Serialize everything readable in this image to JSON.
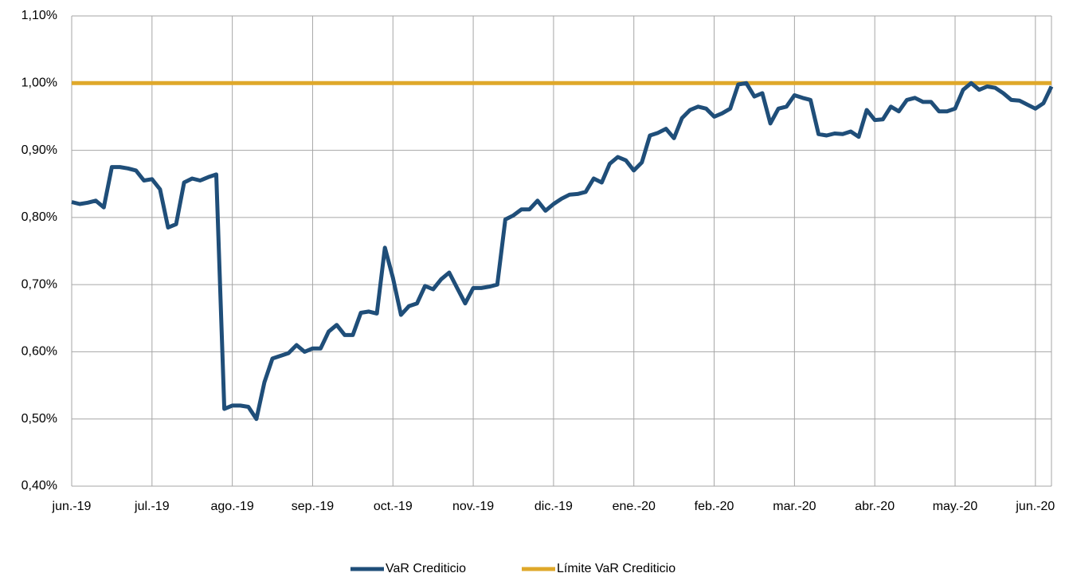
{
  "chart_data": {
    "type": "line",
    "categories": [
      "jun.-19",
      null,
      null,
      null,
      null,
      null,
      null,
      null,
      null,
      null,
      "jul.-19",
      null,
      null,
      null,
      null,
      null,
      null,
      null,
      null,
      null,
      "ago.-19",
      null,
      null,
      null,
      null,
      null,
      null,
      null,
      null,
      null,
      "sep.-19",
      null,
      null,
      null,
      null,
      null,
      null,
      null,
      null,
      null,
      "oct.-19",
      null,
      null,
      null,
      null,
      null,
      null,
      null,
      null,
      null,
      "nov.-19",
      null,
      null,
      null,
      null,
      null,
      null,
      null,
      null,
      null,
      "dic.-19",
      null,
      null,
      null,
      null,
      null,
      null,
      null,
      null,
      null,
      "ene.-20",
      null,
      null,
      null,
      null,
      null,
      null,
      null,
      null,
      null,
      "feb.-20",
      null,
      null,
      null,
      null,
      null,
      null,
      null,
      null,
      null,
      "mar.-20",
      null,
      null,
      null,
      null,
      null,
      null,
      null,
      null,
      null,
      "abr.-20",
      null,
      null,
      null,
      null,
      null,
      null,
      null,
      null,
      null,
      "may.-20",
      null,
      null,
      null,
      null,
      null,
      null,
      null,
      null,
      null,
      "jun.-20",
      null,
      null
    ],
    "series": [
      {
        "name": "VaR Crediticio",
        "color": "#1f4e79",
        "values": [
          0.823,
          0.82,
          0.822,
          0.825,
          0.815,
          0.875,
          0.875,
          0.873,
          0.87,
          0.855,
          0.857,
          0.842,
          0.785,
          0.79,
          0.852,
          0.858,
          0.855,
          0.86,
          0.864,
          0.515,
          0.52,
          0.52,
          0.518,
          0.5,
          0.555,
          0.59,
          0.594,
          0.598,
          0.61,
          0.6,
          0.605,
          0.605,
          0.63,
          0.64,
          0.625,
          0.625,
          0.658,
          0.66,
          0.657,
          0.755,
          0.71,
          0.655,
          0.668,
          0.672,
          0.698,
          0.693,
          0.708,
          0.718,
          0.695,
          0.672,
          0.695,
          0.695,
          0.697,
          0.7,
          0.797,
          0.803,
          0.812,
          0.812,
          0.825,
          0.81,
          0.82,
          0.828,
          0.834,
          0.835,
          0.838,
          0.858,
          0.852,
          0.88,
          0.89,
          0.885,
          0.87,
          0.882,
          0.922,
          0.926,
          0.932,
          0.918,
          0.948,
          0.96,
          0.965,
          0.962,
          0.95,
          0.955,
          0.962,
          0.998,
          1.0,
          0.98,
          0.985,
          0.94,
          0.962,
          0.965,
          0.982,
          0.978,
          0.975,
          0.924,
          0.922,
          0.925,
          0.924,
          0.928,
          0.92,
          0.96,
          0.945,
          0.946,
          0.965,
          0.958,
          0.975,
          0.978,
          0.972,
          0.972,
          0.958,
          0.958,
          0.962,
          0.99,
          1.0,
          0.99,
          0.995,
          0.993,
          0.985,
          0.975,
          0.974,
          0.968,
          0.962,
          0.97,
          0.995
        ]
      },
      {
        "name": "Límite VaR Crediticio",
        "color": "#dfa82a",
        "values": [
          1,
          1,
          1,
          1,
          1,
          1,
          1,
          1,
          1,
          1,
          1,
          1,
          1,
          1,
          1,
          1,
          1,
          1,
          1,
          1,
          1,
          1,
          1,
          1,
          1,
          1,
          1,
          1,
          1,
          1,
          1,
          1,
          1,
          1,
          1,
          1,
          1,
          1,
          1,
          1,
          1,
          1,
          1,
          1,
          1,
          1,
          1,
          1,
          1,
          1,
          1,
          1,
          1,
          1,
          1,
          1,
          1,
          1,
          1,
          1,
          1,
          1,
          1,
          1,
          1,
          1,
          1,
          1,
          1,
          1,
          1,
          1,
          1,
          1,
          1,
          1,
          1,
          1,
          1,
          1,
          1,
          1,
          1,
          1,
          1,
          1,
          1,
          1,
          1,
          1,
          1,
          1,
          1,
          1,
          1,
          1,
          1,
          1,
          1,
          1,
          1,
          1,
          1,
          1,
          1,
          1,
          1,
          1,
          1,
          1,
          1,
          1,
          1,
          1,
          1,
          1,
          1,
          1,
          1,
          1,
          1,
          1,
          1
        ]
      }
    ],
    "ylim": [
      0.4,
      1.1
    ],
    "yticks": [
      {
        "value": 0.4,
        "label": "0,40%"
      },
      {
        "value": 0.5,
        "label": "0,50%"
      },
      {
        "value": 0.6,
        "label": "0,60%"
      },
      {
        "value": 0.7,
        "label": "0,70%"
      },
      {
        "value": 0.8,
        "label": "0,80%"
      },
      {
        "value": 0.9,
        "label": "0,90%"
      },
      {
        "value": 1.0,
        "label": "1,00%"
      },
      {
        "value": 1.1,
        "label": "1,10%"
      }
    ],
    "grid": true,
    "legend": "bottom"
  }
}
